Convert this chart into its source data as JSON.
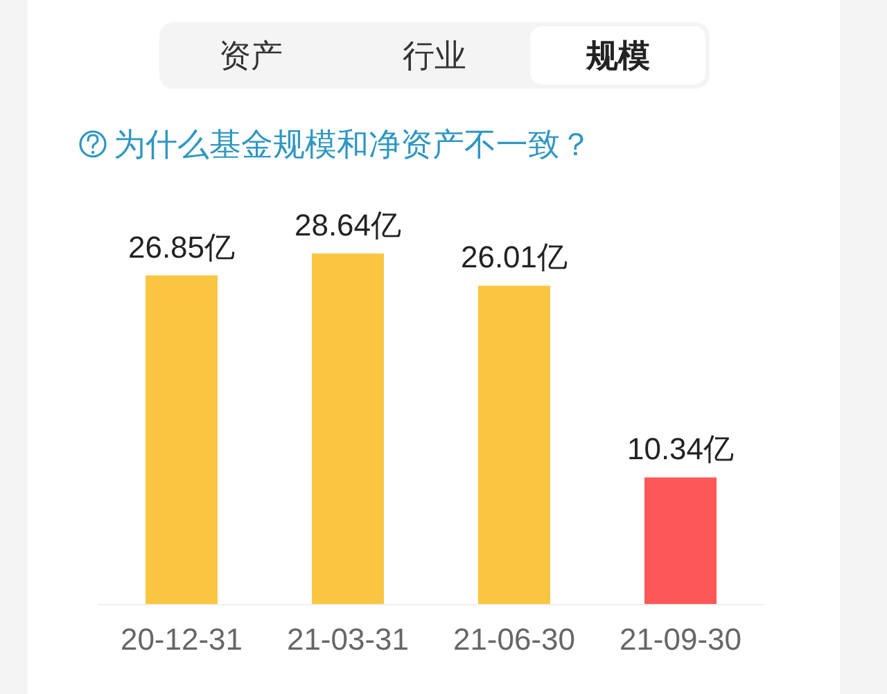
{
  "chart_data": {
    "type": "bar",
    "subtitle": "为什么基金规模和净资产不一致？",
    "annotations": [
      "资产",
      "行业",
      "规模"
    ],
    "categories": [
      "20-12-31",
      "21-03-31",
      "21-06-30",
      "21-09-30"
    ],
    "values": [
      26.85,
      28.64,
      26.01,
      10.34
    ],
    "colors": [
      "#fac641",
      "#fac641",
      "#fac641",
      "#fc5858"
    ],
    "value_labels": [
      "26.85亿",
      "28.64亿",
      "26.01亿",
      "10.34亿"
    ]
  }
}
